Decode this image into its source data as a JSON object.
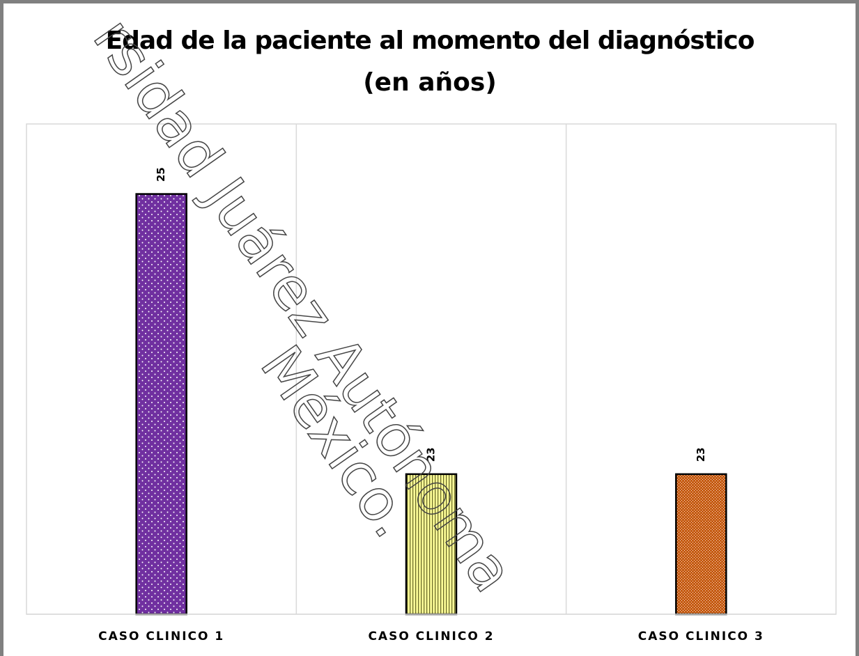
{
  "chart_data": {
    "type": "bar",
    "title": [
      "Edad de la paciente al momento del diagnóstico",
      "(en años)"
    ],
    "categories": [
      "CASO CLINICO 1",
      "CASO CLINICO 2",
      "CASO CLINICO 3"
    ],
    "values": [
      25,
      23,
      23
    ],
    "colors": [
      "#7030a0",
      "#ffff99",
      "#c55a11"
    ],
    "ylim": [
      22,
      25.5
    ],
    "watermark": [
      "rsidad Juárez Autónoma",
      "México."
    ]
  }
}
